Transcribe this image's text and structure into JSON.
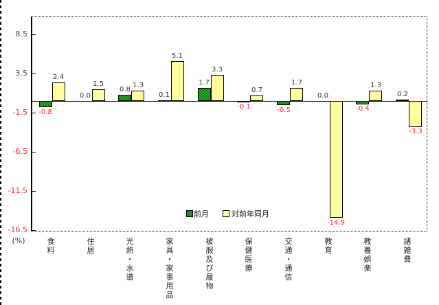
{
  "chart_data": {
    "type": "bar",
    "title": "",
    "unit_label": "(%)",
    "categories": [
      "食料",
      "住居",
      "光熱・水道",
      "家具・家事用品",
      "被服及び履物",
      "保健医療",
      "交通・通信",
      "教育",
      "教養娯楽",
      "諸雑費"
    ],
    "series": [
      {
        "name": "対前月",
        "color": "#0a7d0a",
        "values": [
          -0.8,
          0.0,
          0.8,
          0.1,
          1.7,
          -0.1,
          -0.5,
          0.0,
          -0.4,
          0.2
        ]
      },
      {
        "name": "対前年同月",
        "color": "#ffff9e",
        "values": [
          2.4,
          1.5,
          1.3,
          5.1,
          3.3,
          0.7,
          1.7,
          -14.9,
          1.3,
          -3.3
        ]
      }
    ],
    "yticks": [
      8.5,
      3.5,
      -1.5,
      -6.5,
      -11.5,
      -16.5
    ],
    "ylim": [
      -16.7,
      10.8
    ],
    "grid": false,
    "legend_position": "bottom-center-inside",
    "colors": {
      "negative_text": "#ff2020",
      "positive_text": "#333333",
      "axis": "#000000",
      "background": "#ffffff"
    }
  }
}
